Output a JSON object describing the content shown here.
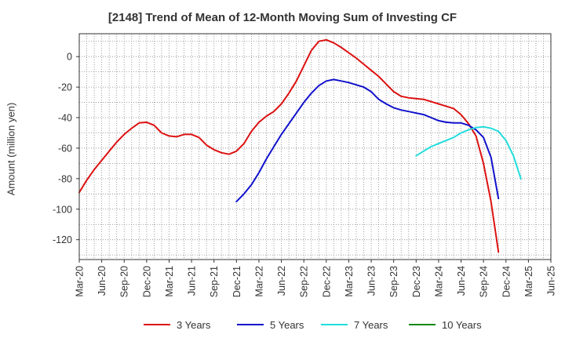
{
  "chart_data": {
    "type": "line",
    "title": "[2148]  Trend of Mean of 12-Month Moving Sum of Investing CF",
    "xlabel": "",
    "ylabel": "Amount (million yen)",
    "ylim": [
      -133,
      15
    ],
    "yticks": [
      0,
      -20,
      -40,
      -60,
      -80,
      -100,
      -120
    ],
    "xticks": [
      "Mar-20",
      "Jun-20",
      "Sep-20",
      "Dec-20",
      "Mar-21",
      "Jun-21",
      "Sep-21",
      "Dec-21",
      "Mar-22",
      "Jun-22",
      "Sep-22",
      "Dec-22",
      "Mar-23",
      "Jun-23",
      "Sep-23",
      "Dec-23",
      "Mar-24",
      "Jun-24",
      "Sep-24",
      "Dec-24",
      "Mar-25",
      "Jun-25"
    ],
    "grid": true,
    "legend_position": "bottom",
    "series": [
      {
        "name": "3 Years",
        "color": "#dd1111",
        "start_index": 0,
        "values": [
          -89,
          -81,
          -74,
          -68,
          -62,
          -56,
          -51,
          -47,
          -43.5,
          -43,
          -45,
          -50,
          -52,
          -52.5,
          -51,
          -51,
          -53,
          -58,
          -61,
          -63,
          -64,
          -62,
          -57,
          -49,
          -43,
          -39,
          -36,
          -31,
          -24,
          -16,
          -6,
          4,
          10,
          11,
          9,
          6,
          2.5,
          -1,
          -5,
          -9,
          -13,
          -18,
          -23,
          -26,
          -27,
          -27.5,
          -28,
          -29.5,
          -31,
          -32.5,
          -34,
          -38,
          -44,
          -52,
          -70,
          -95,
          -128
        ]
      },
      {
        "name": "5 Years",
        "color": "#1111cc",
        "start_index": 21,
        "values": [
          -95,
          -90,
          -84,
          -76,
          -67,
          -59,
          -51,
          -44,
          -37,
          -30,
          -24,
          -19,
          -16,
          -15,
          -16,
          -17,
          -18.5,
          -20,
          -23,
          -28,
          -31,
          -33.5,
          -35,
          -36,
          -37,
          -38,
          -40,
          -42,
          -43,
          -43.5,
          -43.5,
          -45,
          -48,
          -53,
          -66,
          -93
        ]
      },
      {
        "name": "7 Years",
        "color": "#22dddd",
        "start_index": 45,
        "values": [
          -65,
          -62,
          -59,
          -57,
          -55,
          -53,
          -50,
          -48,
          -46.5,
          -46,
          -47,
          -49,
          -55,
          -65,
          -80
        ]
      },
      {
        "name": "10 Years",
        "color": "#118811",
        "start_index": 0,
        "values": []
      }
    ]
  }
}
